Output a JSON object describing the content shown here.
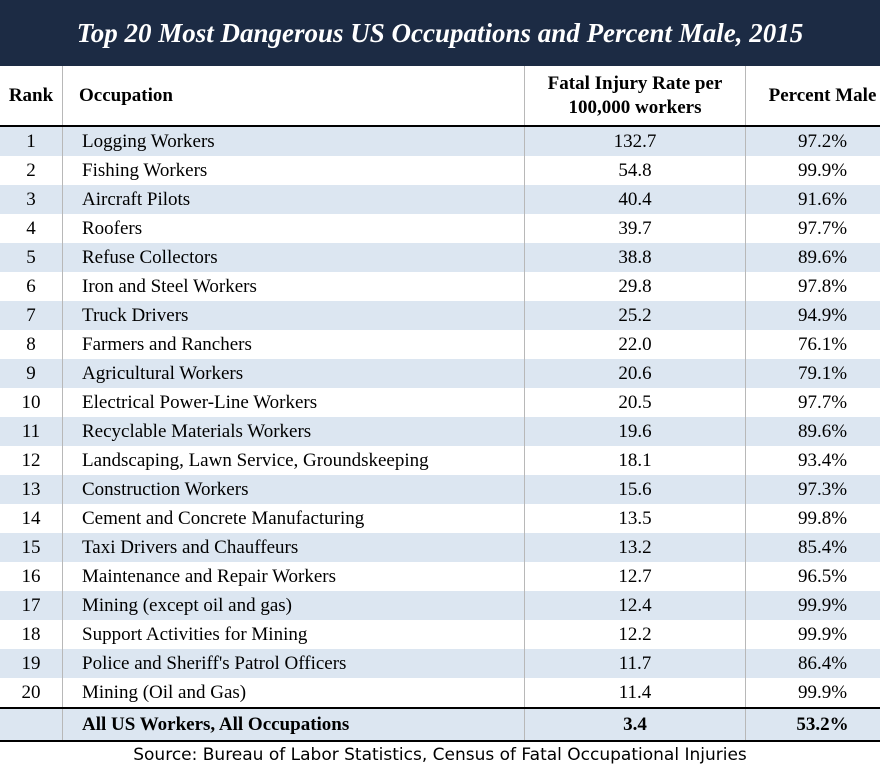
{
  "title": "Top 20 Most Dangerous US Occupations and Percent Male, 2015",
  "chart_data": {
    "type": "table",
    "columns": [
      "Rank",
      "Occupation",
      "Fatal Injury Rate per 100,000 workers",
      "Percent Male"
    ],
    "rows": [
      [
        "1",
        "Logging Workers",
        "132.7",
        "97.2%"
      ],
      [
        "2",
        "Fishing Workers",
        "54.8",
        "99.9%"
      ],
      [
        "3",
        "Aircraft Pilots",
        "40.4",
        "91.6%"
      ],
      [
        "4",
        "Roofers",
        "39.7",
        "97.7%"
      ],
      [
        "5",
        "Refuse Collectors",
        "38.8",
        "89.6%"
      ],
      [
        "6",
        "Iron and Steel Workers",
        "29.8",
        "97.8%"
      ],
      [
        "7",
        "Truck Drivers",
        "25.2",
        "94.9%"
      ],
      [
        "8",
        "Farmers and Ranchers",
        "22.0",
        "76.1%"
      ],
      [
        "9",
        "Agricultural Workers",
        "20.6",
        "79.1%"
      ],
      [
        "10",
        "Electrical Power-Line Workers",
        "20.5",
        "97.7%"
      ],
      [
        "11",
        "Recyclable Materials Workers",
        "19.6",
        "89.6%"
      ],
      [
        "12",
        "Landscaping, Lawn Service, Groundskeeping",
        "18.1",
        "93.4%"
      ],
      [
        "13",
        "Construction Workers",
        "15.6",
        "97.3%"
      ],
      [
        "14",
        "Cement and Concrete Manufacturing",
        "13.5",
        "99.8%"
      ],
      [
        "15",
        "Taxi Drivers and Chauffeurs",
        "13.2",
        "85.4%"
      ],
      [
        "16",
        "Maintenance and Repair Workers",
        "12.7",
        "96.5%"
      ],
      [
        "17",
        "Mining (except oil and gas)",
        "12.4",
        "99.9%"
      ],
      [
        "18",
        "Support Activities for Mining",
        "12.2",
        "99.9%"
      ],
      [
        "19",
        "Police and Sheriff's Patrol Officers",
        "11.7",
        "86.4%"
      ],
      [
        "20",
        "Mining (Oil and Gas)",
        "11.4",
        "99.9%"
      ]
    ],
    "total_row": [
      "",
      "All US Workers, All Occupations",
      "3.4",
      "53.2%"
    ]
  },
  "source": "Source: Bureau of Labor Statistics, Census of Fatal Occupational Injuries",
  "colors": {
    "title_background": "#1c2b44",
    "title_text": "#ffffff",
    "band_fill": "#dce6f1"
  }
}
